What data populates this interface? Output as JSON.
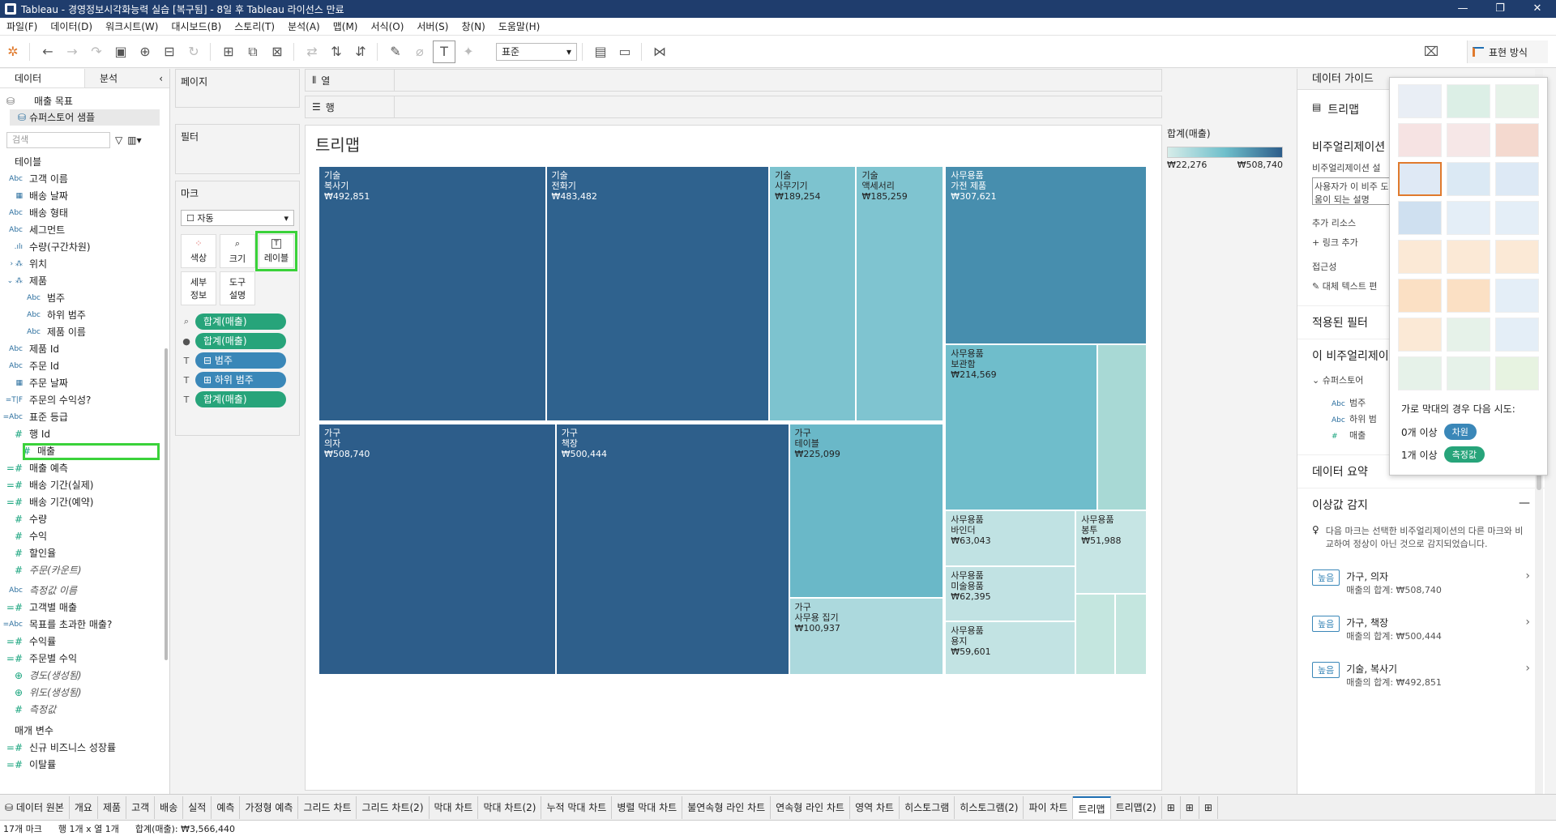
{
  "window": {
    "title": "Tableau - 경영정보시각화능력 실습 [복구됨] - 8일 후 Tableau 라이선스 만료",
    "controls": [
      "—",
      "❐",
      "✕"
    ]
  },
  "menu": [
    "파일(F)",
    "데이터(D)",
    "워크시트(W)",
    "대시보드(B)",
    "스토리(T)",
    "분석(A)",
    "맵(M)",
    "서식(O)",
    "서버(S)",
    "창(N)",
    "도움말(H)"
  ],
  "toolbar": {
    "fit_select": "표준",
    "show_me_label": "표현 방식"
  },
  "data_pane": {
    "tab_data": "데이터",
    "tab_analysis": "분석",
    "sources": [
      "매출 목표",
      "슈퍼스토어 샘플"
    ],
    "search_placeholder": "검색",
    "tables_title": "테이블",
    "fields": [
      {
        "type": "Abc",
        "name": "고객 이름"
      },
      {
        "type": "▦",
        "name": "배송 날짜"
      },
      {
        "type": "Abc",
        "name": "배송 형태"
      },
      {
        "type": "Abc",
        "name": "세그먼트"
      },
      {
        "type": ".ılı",
        "name": "수량(구간차원)"
      },
      {
        "type": "›  ⁂",
        "name": "위치"
      },
      {
        "type": "⌄  ⁂",
        "name": "제품"
      },
      {
        "type": "Abc",
        "name": "범주",
        "indent": true
      },
      {
        "type": "Abc",
        "name": "하위 범주",
        "indent": true
      },
      {
        "type": "Abc",
        "name": "제품 이름",
        "indent": true
      },
      {
        "type": "Abc",
        "name": "제품 Id"
      },
      {
        "type": "Abc",
        "name": "주문 Id"
      },
      {
        "type": "▦",
        "name": "주문 날짜"
      },
      {
        "type": "=T|F",
        "name": "주문의 수익성?"
      },
      {
        "type": "=Abc",
        "name": "표준 등급"
      },
      {
        "type": "#",
        "name": "행 Id"
      },
      {
        "type": "#",
        "name": "매출",
        "highlight": true
      },
      {
        "type": "=#",
        "name": "매출 예측"
      },
      {
        "type": "=#",
        "name": "배송 기간(실제)"
      },
      {
        "type": "=#",
        "name": "배송 기간(예약)"
      },
      {
        "type": "#",
        "name": "수량"
      },
      {
        "type": "#",
        "name": "수익"
      },
      {
        "type": "#",
        "name": "할인율"
      },
      {
        "type": "#",
        "name": "주문(카운트)",
        "italic": true
      }
    ],
    "measure_fields": [
      {
        "type": "Abc",
        "name": "측정값 이름",
        "italic": true
      },
      {
        "type": "=#",
        "name": "고객별 매출"
      },
      {
        "type": "=Abc",
        "name": "목표를 초과한 매출?"
      },
      {
        "type": "=#",
        "name": "수익률"
      },
      {
        "type": "=#",
        "name": "주문별 수익"
      },
      {
        "type": "⊕",
        "name": "경도(생성됨)",
        "italic": true
      },
      {
        "type": "⊕",
        "name": "위도(생성됨)",
        "italic": true
      },
      {
        "type": "#",
        "name": "측정값",
        "italic": true
      }
    ],
    "params_title": "매개 변수",
    "params": [
      {
        "type": "=#",
        "name": "신규 비즈니스 성장률"
      },
      {
        "type": "=#",
        "name": "이탈률"
      }
    ]
  },
  "shelves": {
    "pages": "페이지",
    "filters": "필터",
    "marks": "마크",
    "mark_type": "자동",
    "mark_buttons": [
      "색상",
      "크기",
      "레이블",
      "세부 정보",
      "도구 설명"
    ],
    "pills": [
      {
        "icon": "⌕",
        "label": "합계(매출)",
        "kind": "green"
      },
      {
        "icon": "●",
        "label": "합계(매출)",
        "kind": "green"
      },
      {
        "icon": "T",
        "label": "⊟ 범주",
        "kind": "blue"
      },
      {
        "icon": "T",
        "label": "⊞ 하위 범주",
        "kind": "blue"
      },
      {
        "icon": "T",
        "label": "합계(매출)",
        "kind": "green"
      }
    ],
    "columns_label": "열",
    "rows_label": "행"
  },
  "view": {
    "title": "트리맵",
    "legend_title": "합계(매출)",
    "legend_min": "₩22,276",
    "legend_max": "₩508,740"
  },
  "chart_data": {
    "type": "treemap",
    "measure": "합계(매출)",
    "nodes": [
      {
        "category": "기술",
        "subcategory": "복사기",
        "value": 492851,
        "label": "₩492,851"
      },
      {
        "category": "기술",
        "subcategory": "전화기",
        "value": 483482,
        "label": "₩483,482"
      },
      {
        "category": "기술",
        "subcategory": "사무기기",
        "value": 189254,
        "label": "₩189,254"
      },
      {
        "category": "기술",
        "subcategory": "액세서리",
        "value": 185259,
        "label": "₩185,259"
      },
      {
        "category": "사무용품",
        "subcategory": "가전 제품",
        "value": 307621,
        "label": "₩307,621"
      },
      {
        "category": "사무용품",
        "subcategory": "보관함",
        "value": 214569,
        "label": "₩214,569"
      },
      {
        "category": "가구",
        "subcategory": "의자",
        "value": 508740,
        "label": "₩508,740"
      },
      {
        "category": "가구",
        "subcategory": "책장",
        "value": 500444,
        "label": "₩500,444"
      },
      {
        "category": "가구",
        "subcategory": "테이블",
        "value": 225099,
        "label": "₩225,099"
      },
      {
        "category": "가구",
        "subcategory": "사무용 집기",
        "value": 100937,
        "label": "₩100,937"
      },
      {
        "category": "사무용품",
        "subcategory": "바인더",
        "value": 63043,
        "label": "₩63,043"
      },
      {
        "category": "사무용품",
        "subcategory": "봉투",
        "value": 51988,
        "label": "₩51,988"
      },
      {
        "category": "사무용품",
        "subcategory": "미술용품",
        "value": 62395,
        "label": "₩62,395"
      },
      {
        "category": "사무용품",
        "subcategory": "용지",
        "value": 59601,
        "label": "₩59,601"
      }
    ],
    "color_range": [
      "₩22,276",
      "₩508,740"
    ]
  },
  "right_panel": {
    "header": "데이터 가이드",
    "viz_name": "트리맵",
    "viz_desc_title": "비주얼리제이션 설명",
    "viz_desc_sub": "비주얼리제이션 설",
    "viz_desc_box": "사용자가 이 비주 도움이 되는 설명",
    "resources_title": "추가 리소스",
    "add_link": "링크 추가",
    "accessibility": "접근성",
    "alt_text": "대체 텍스트 편",
    "applied_filters": "적용된 필터",
    "this_viz": "이 비주얼리제이",
    "datasource_short": "슈퍼스토어",
    "viz_fields": [
      {
        "type": "Abc",
        "name": "범주"
      },
      {
        "type": "Abc",
        "name": "하위 범"
      },
      {
        "type": "#",
        "name": "매출"
      }
    ],
    "data_summary": "데이터 요약",
    "outliers_title": "이상값 감지",
    "outliers_desc": "다음 마크는 선택한 비주얼리제이션의 다른 마크와 비교하여 정상이 아닌 것으로 감지되었습니다.",
    "outliers": [
      {
        "badge": "높음",
        "title": "가구, 의자",
        "sub": "매출의 합계: ₩508,740"
      },
      {
        "badge": "높음",
        "title": "가구, 책장",
        "sub": "매출의 합계: ₩500,444"
      },
      {
        "badge": "높음",
        "title": "기술, 복사기",
        "sub": "매출의 합계: ₩492,851"
      }
    ]
  },
  "show_me": {
    "hint": "가로 막대의 경우 다음 시도:",
    "req1_label": "0개 이상",
    "req1_chip": "차원",
    "req2_label": "1개 이상",
    "req2_chip": "측정값"
  },
  "sheet_tabs": [
    "데이터 원본",
    "개요",
    "제품",
    "고객",
    "배송",
    "실적",
    "예측",
    "가정형 예측",
    "그리드 차트",
    "그리드 차트(2)",
    "막대 차트",
    "막대 차트(2)",
    "누적 막대 차트",
    "병렬 막대 차트",
    "불연속형 라인 차트",
    "연속형 라인 차트",
    "영역 차트",
    "히스토그램",
    "히스토그램(2)",
    "파이 차트",
    "트리맵",
    "트리맵(2)"
  ],
  "active_tab": "트리맵",
  "status": {
    "marks": "17개 마크",
    "dims": "행 1개 x 열 1개",
    "sum": "합계(매출): ₩3,566,440"
  },
  "colors": {
    "darkest": "#2d5d8a",
    "dark": "#3a7ea4",
    "mid": "#6db9c8",
    "light": "#a8d9d5",
    "lightest": "#c4e6df",
    "green_pill": "#27a47a",
    "blue_pill": "#3a87b8",
    "highlight": "#3ad23a"
  }
}
